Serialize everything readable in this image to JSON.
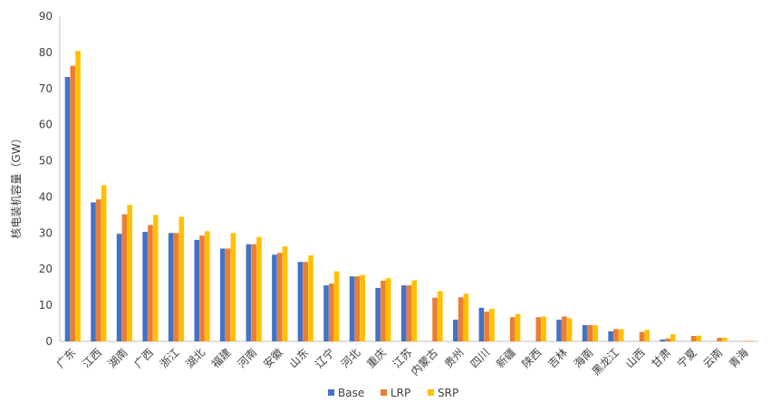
{
  "chart_data": {
    "type": "bar",
    "title": "",
    "xlabel": "",
    "ylabel": "核电装机容量（GW）",
    "ylim": [
      0,
      90
    ],
    "y_ticks": [
      0,
      10,
      20,
      30,
      40,
      50,
      60,
      70,
      80,
      90
    ],
    "grid": false,
    "legend_position": "bottom",
    "categories": [
      "广东",
      "江西",
      "湖南",
      "广西",
      "浙江",
      "湖北",
      "福建",
      "河南",
      "安徽",
      "山东",
      "辽宁",
      "河北",
      "重庆",
      "江苏",
      "内蒙古",
      "贵州",
      "四川",
      "新疆",
      "陕西",
      "吉林",
      "海南",
      "黑龙江",
      "山西",
      "甘肃",
      "宁夏",
      "云南",
      "青海"
    ],
    "series": [
      {
        "name": "Base",
        "color": "#4472C4",
        "values": [
          73.2,
          38.5,
          29.8,
          30.3,
          30.0,
          28.1,
          25.7,
          26.9,
          24.0,
          22.0,
          15.5,
          18.0,
          14.8,
          15.5,
          0,
          6.0,
          9.3,
          0,
          0,
          6.0,
          4.5,
          2.8,
          0,
          0.5,
          0,
          0,
          0
        ]
      },
      {
        "name": "LRP",
        "color": "#ED7D31",
        "values": [
          76.3,
          39.3,
          35.2,
          32.2,
          30.0,
          29.3,
          25.7,
          26.9,
          24.5,
          22.0,
          16.0,
          18.0,
          16.8,
          15.5,
          12.1,
          12.2,
          8.2,
          6.7,
          6.7,
          6.9,
          4.5,
          3.4,
          2.6,
          0.8,
          1.5,
          1.0,
          0.1
        ]
      },
      {
        "name": "SRP",
        "color": "#FFC000",
        "values": [
          80.4,
          43.2,
          37.8,
          35.0,
          34.5,
          30.5,
          30.0,
          28.9,
          26.3,
          23.8,
          19.4,
          18.4,
          17.5,
          16.9,
          13.9,
          13.2,
          9.0,
          7.6,
          6.9,
          6.4,
          4.5,
          3.4,
          3.2,
          2.0,
          1.6,
          1.0,
          0.2
        ]
      }
    ]
  }
}
